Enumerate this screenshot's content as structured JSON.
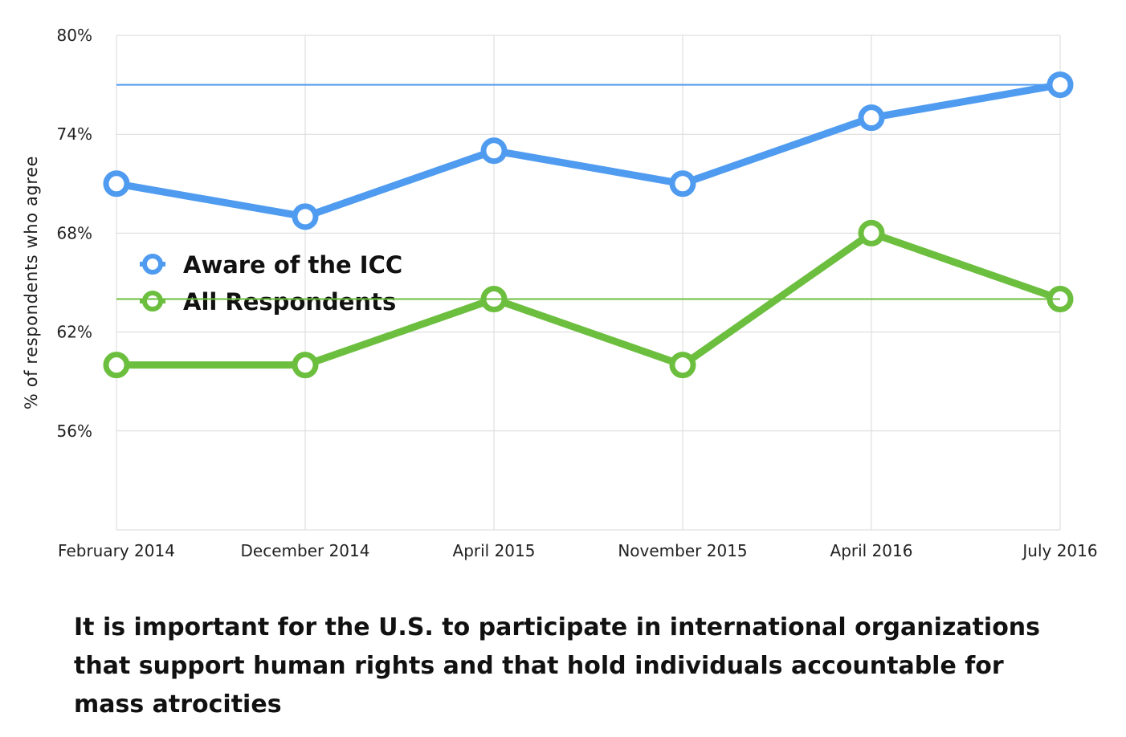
{
  "chart_data": {
    "type": "line",
    "categories": [
      "February 2014",
      "December 2014",
      "April 2015",
      "November 2015",
      "April 2016",
      "July 2016"
    ],
    "series": [
      {
        "name": "Aware of the ICC",
        "color": "#4f9bf0",
        "values": [
          71,
          69,
          73,
          71,
          75,
          77
        ]
      },
      {
        "name": "All Respondents",
        "color": "#6cbf3e",
        "values": [
          60,
          60,
          64,
          60,
          68,
          64
        ]
      }
    ],
    "reference_lines": [
      {
        "value": 77,
        "color": "#4f9bf0"
      },
      {
        "value": 64,
        "color": "#6cbf3e"
      }
    ],
    "ylabel": "% of respondents who agree",
    "ylim": [
      50,
      80
    ],
    "yticks": [
      {
        "value": 80,
        "label": "80%"
      },
      {
        "value": 74,
        "label": "74%"
      },
      {
        "value": 68,
        "label": "68%"
      },
      {
        "value": 62,
        "label": "62%"
      },
      {
        "value": 56,
        "label": "56%"
      }
    ],
    "grid": true,
    "legend_position": "left"
  },
  "caption": "It is important for the U.S. to participate in international organizations that support human rights and that hold individuals accountable for mass atrocities"
}
